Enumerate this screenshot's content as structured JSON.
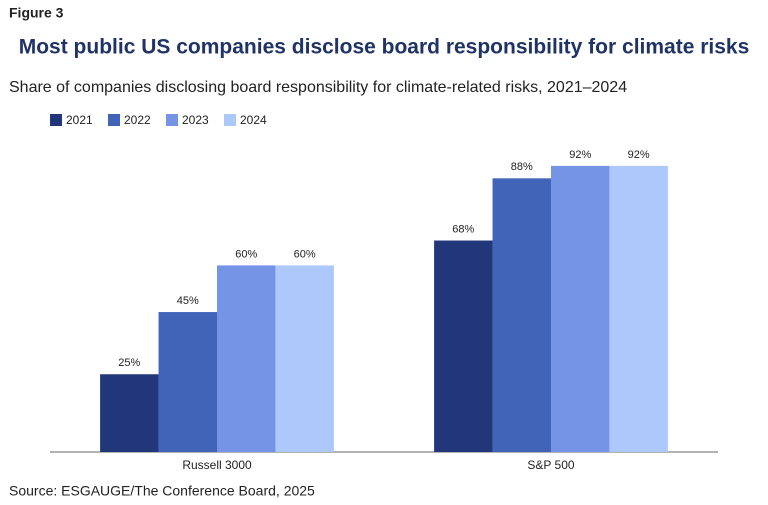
{
  "figure_label": "Figure 3",
  "source": "Source: ESGAUGE/The Conference Board, 2025",
  "chart_data": {
    "type": "bar",
    "title": "Most public US companies disclose board responsibility for climate risks",
    "subtitle": "Share of companies disclosing board responsibility for climate-related risks, 2021–2024",
    "categories": [
      "Russell 3000",
      "S&P 500"
    ],
    "series": [
      {
        "name": "2021",
        "color": "#22367a",
        "values": [
          25,
          68
        ],
        "value_labels": [
          "25%",
          "68%"
        ]
      },
      {
        "name": "2022",
        "color": "#4264b8",
        "values": [
          45,
          88
        ],
        "value_labels": [
          "45%",
          "88%"
        ]
      },
      {
        "name": "2023",
        "color": "#7594e6",
        "values": [
          60,
          92
        ],
        "value_labels": [
          "60%",
          "92%"
        ]
      },
      {
        "name": "2024",
        "color": "#adc8fb",
        "values": [
          60,
          92
        ],
        "value_labels": [
          "60%",
          "92%"
        ]
      }
    ],
    "ylim": [
      0,
      100
    ],
    "legend": "top-left"
  }
}
